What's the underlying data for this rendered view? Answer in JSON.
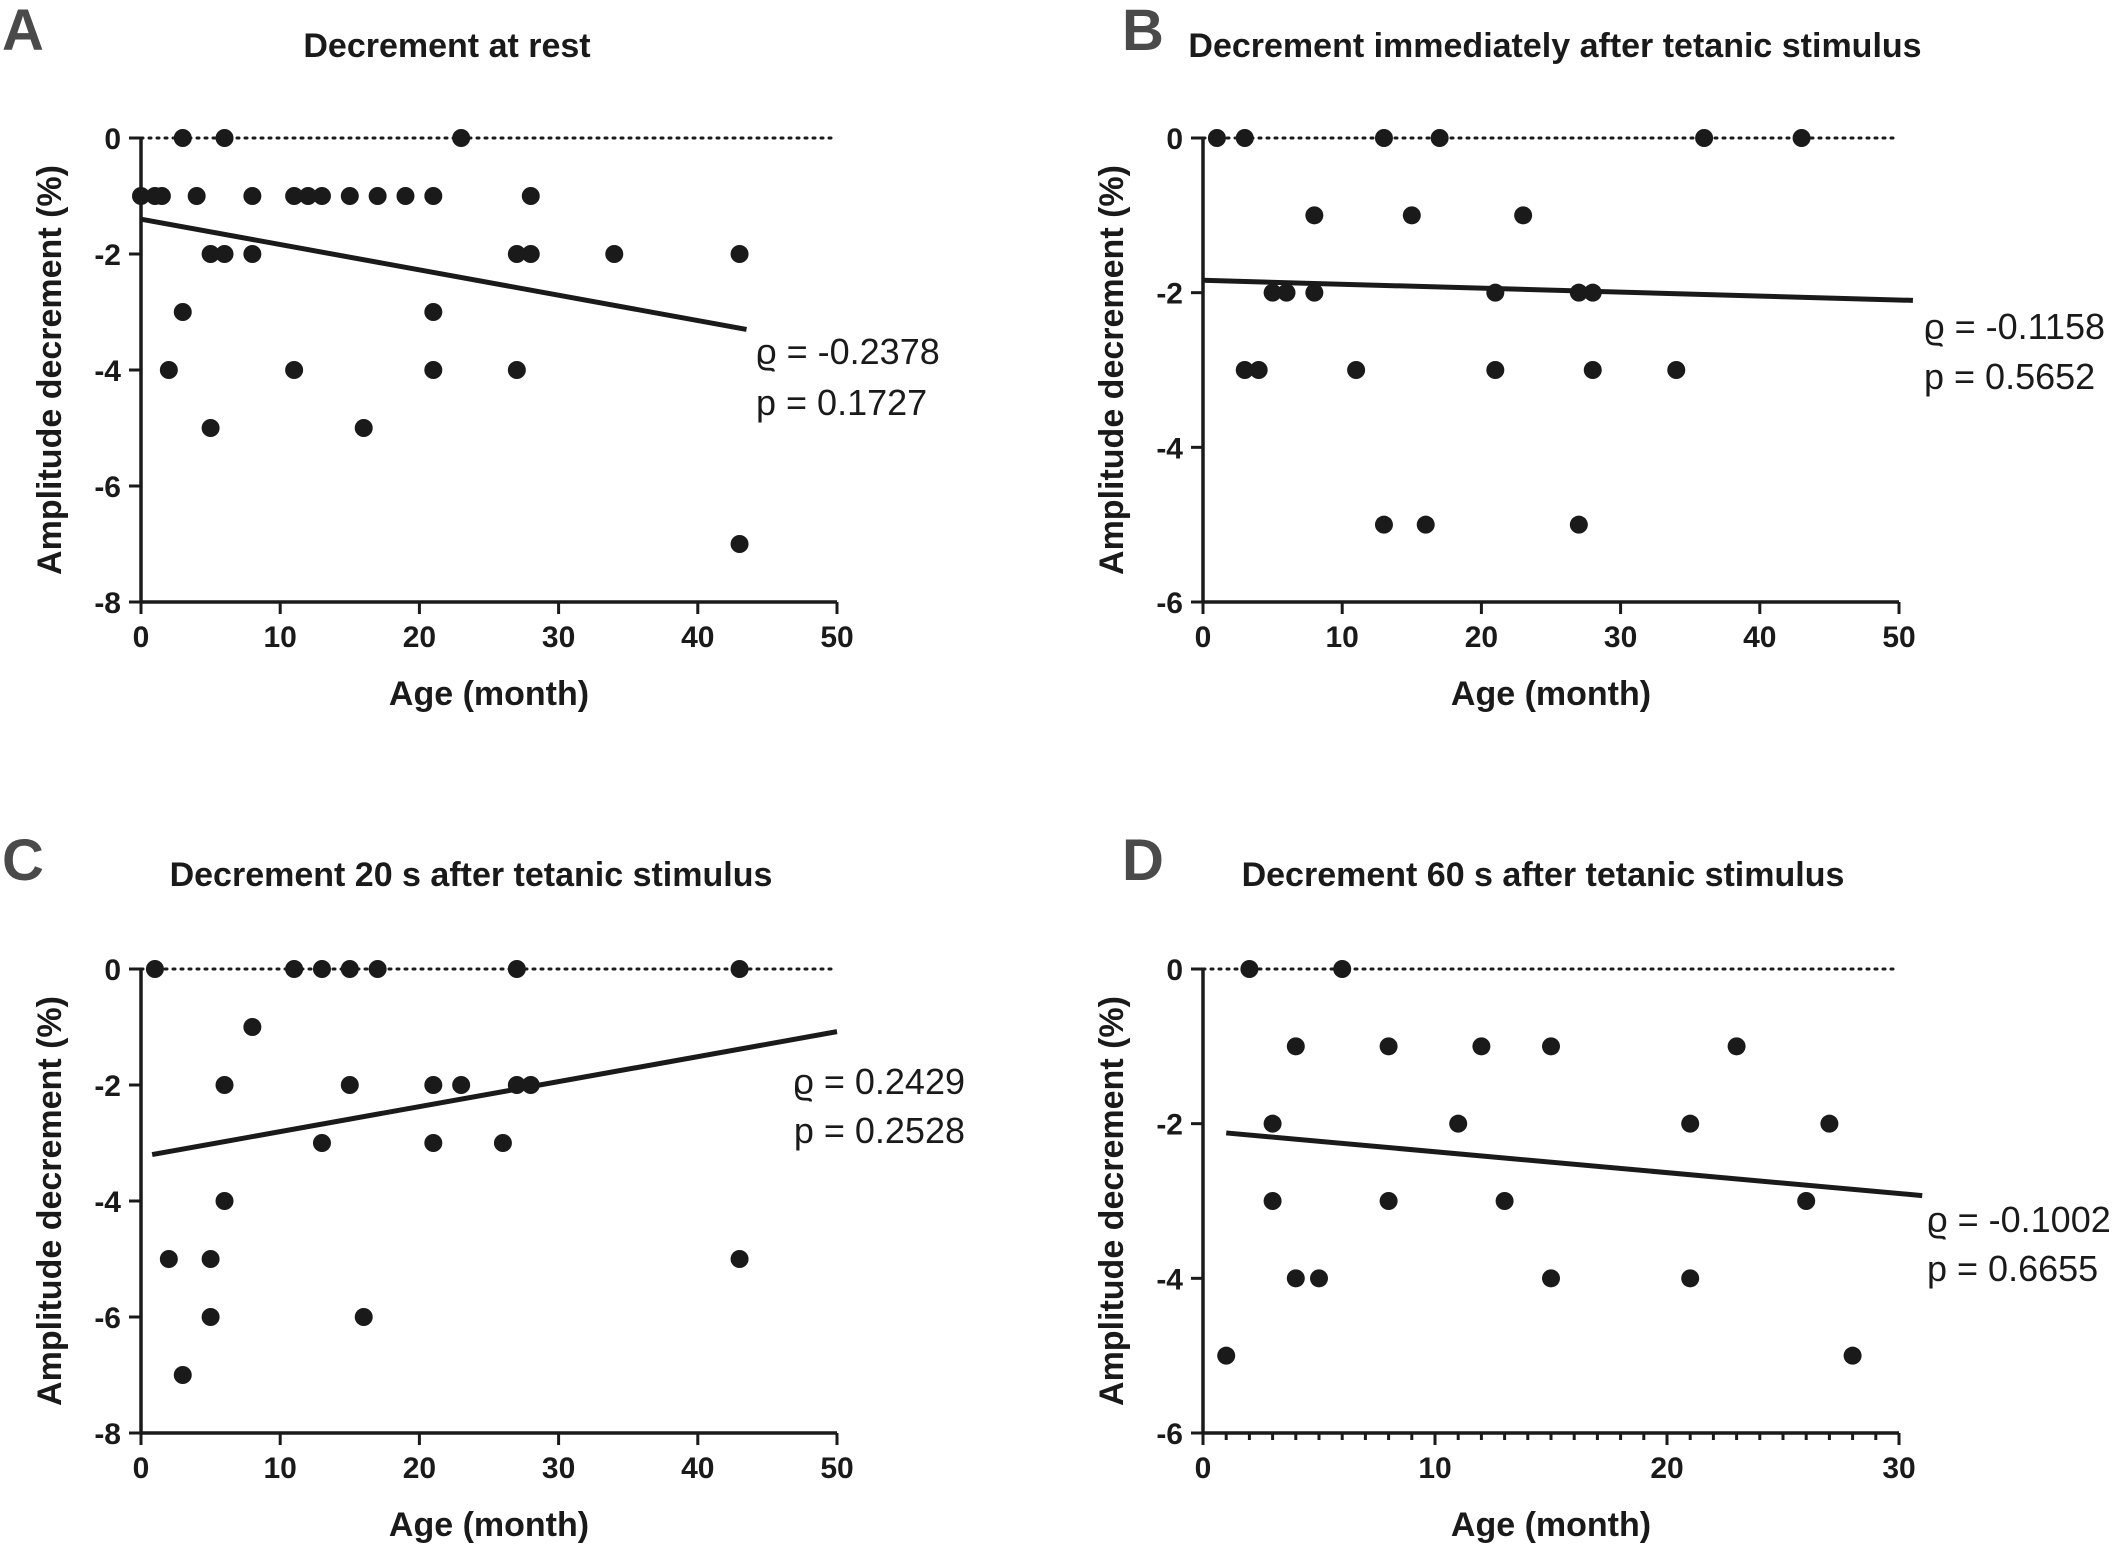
{
  "chart_data": [
    {
      "type": "scatter",
      "panel": "A",
      "title": "Decrement at rest",
      "xlabel": "Age (month)",
      "ylabel": "Amplitude decrement (%)",
      "xlim": [
        0,
        50
      ],
      "ylim": [
        -8,
        0
      ],
      "xticks": [
        0,
        10,
        20,
        30,
        40,
        50
      ],
      "yticks": [
        0,
        -2,
        -4,
        -6,
        -8
      ],
      "minor_xticks": false,
      "reference_line_y": 0,
      "points": [
        {
          "x": 0,
          "y": -1
        },
        {
          "x": 1,
          "y": -1
        },
        {
          "x": 1.5,
          "y": -1
        },
        {
          "x": 2,
          "y": -4
        },
        {
          "x": 3,
          "y": 0
        },
        {
          "x": 3,
          "y": -3
        },
        {
          "x": 4,
          "y": -1
        },
        {
          "x": 5,
          "y": -2
        },
        {
          "x": 5,
          "y": -5
        },
        {
          "x": 6,
          "y": 0
        },
        {
          "x": 6,
          "y": -2
        },
        {
          "x": 8,
          "y": -1
        },
        {
          "x": 8,
          "y": -2
        },
        {
          "x": 11,
          "y": -1
        },
        {
          "x": 11,
          "y": -4
        },
        {
          "x": 12,
          "y": -1
        },
        {
          "x": 13,
          "y": -1
        },
        {
          "x": 15,
          "y": -1
        },
        {
          "x": 16,
          "y": -5
        },
        {
          "x": 17,
          "y": -1
        },
        {
          "x": 19,
          "y": -1
        },
        {
          "x": 21,
          "y": -1
        },
        {
          "x": 21,
          "y": -3
        },
        {
          "x": 21,
          "y": -4
        },
        {
          "x": 23,
          "y": 0
        },
        {
          "x": 27,
          "y": -2
        },
        {
          "x": 27,
          "y": -4
        },
        {
          "x": 28,
          "y": -1
        },
        {
          "x": 28,
          "y": -2
        },
        {
          "x": 34,
          "y": -2
        },
        {
          "x": 43,
          "y": -2
        },
        {
          "x": 43,
          "y": -7
        }
      ],
      "fit_line": {
        "x": [
          0,
          43.5
        ],
        "y": [
          -1.4,
          -3.3
        ]
      },
      "stats": {
        "rho": "ϱ = -0.2378",
        "p": "p = 0.1727"
      }
    },
    {
      "type": "scatter",
      "panel": "B",
      "title": "Decrement immediately after tetanic stimulus",
      "xlabel": "Age (month)",
      "ylabel": "Amplitude decrement (%)",
      "xlim": [
        0,
        50
      ],
      "ylim": [
        -6,
        0
      ],
      "xticks": [
        0,
        10,
        20,
        30,
        40,
        50
      ],
      "yticks": [
        0,
        -2,
        -4,
        -6
      ],
      "minor_xticks": false,
      "reference_line_y": 0,
      "points": [
        {
          "x": 1,
          "y": 0
        },
        {
          "x": 3,
          "y": 0
        },
        {
          "x": 3,
          "y": -3
        },
        {
          "x": 4,
          "y": -3
        },
        {
          "x": 5,
          "y": -2
        },
        {
          "x": 6,
          "y": -2
        },
        {
          "x": 8,
          "y": -1
        },
        {
          "x": 8,
          "y": -2
        },
        {
          "x": 11,
          "y": -3
        },
        {
          "x": 13,
          "y": 0
        },
        {
          "x": 13,
          "y": -5
        },
        {
          "x": 15,
          "y": -1
        },
        {
          "x": 16,
          "y": -5
        },
        {
          "x": 17,
          "y": 0
        },
        {
          "x": 21,
          "y": -2
        },
        {
          "x": 21,
          "y": -3
        },
        {
          "x": 23,
          "y": -1
        },
        {
          "x": 27,
          "y": -2
        },
        {
          "x": 27,
          "y": -5
        },
        {
          "x": 28,
          "y": -2
        },
        {
          "x": 28,
          "y": -3
        },
        {
          "x": 34,
          "y": -3
        },
        {
          "x": 36,
          "y": 0
        },
        {
          "x": 43,
          "y": 0
        }
      ],
      "fit_line": {
        "x": [
          0,
          51
        ],
        "y": [
          -1.84,
          -2.1
        ]
      },
      "stats": {
        "rho": "ϱ = -0.1158",
        "p": "p = 0.5652"
      }
    },
    {
      "type": "scatter",
      "panel": "C",
      "title": "Decrement 20 s after tetanic stimulus",
      "xlabel": "Age (month)",
      "ylabel": "Amplitude decrement (%)",
      "xlim": [
        0,
        50
      ],
      "ylim": [
        -8,
        0
      ],
      "xticks": [
        0,
        10,
        20,
        30,
        40,
        50
      ],
      "yticks": [
        0,
        -2,
        -4,
        -6,
        -8
      ],
      "minor_xticks": false,
      "reference_line_y": 0,
      "points": [
        {
          "x": 1,
          "y": 0
        },
        {
          "x": 2,
          "y": -5
        },
        {
          "x": 3,
          "y": -7
        },
        {
          "x": 5,
          "y": -5
        },
        {
          "x": 5,
          "y": -6
        },
        {
          "x": 6,
          "y": -2
        },
        {
          "x": 6,
          "y": -4
        },
        {
          "x": 8,
          "y": -1
        },
        {
          "x": 11,
          "y": 0
        },
        {
          "x": 13,
          "y": 0
        },
        {
          "x": 13,
          "y": -3
        },
        {
          "x": 15,
          "y": 0
        },
        {
          "x": 15,
          "y": -2
        },
        {
          "x": 16,
          "y": -6
        },
        {
          "x": 17,
          "y": 0
        },
        {
          "x": 21,
          "y": -2
        },
        {
          "x": 21,
          "y": -3
        },
        {
          "x": 23,
          "y": -2
        },
        {
          "x": 26,
          "y": -3
        },
        {
          "x": 27,
          "y": 0
        },
        {
          "x": 27,
          "y": -2
        },
        {
          "x": 28,
          "y": -2
        },
        {
          "x": 43,
          "y": 0
        },
        {
          "x": 43,
          "y": -5
        }
      ],
      "fit_line": {
        "x": [
          0.8,
          50
        ],
        "y": [
          -3.2,
          -1.08
        ]
      },
      "stats": {
        "rho": "ϱ = 0.2429",
        "p": "p = 0.2528"
      }
    },
    {
      "type": "scatter",
      "panel": "D",
      "title": "Decrement 60 s after tetanic stimulus",
      "xlabel": "Age (month)",
      "ylabel": "Amplitude decrement (%)",
      "xlim": [
        0,
        30
      ],
      "ylim": [
        -6,
        0
      ],
      "xticks": [
        0,
        10,
        20,
        30
      ],
      "yticks": [
        0,
        -2,
        -4,
        -6
      ],
      "minor_xticks": true,
      "reference_line_y": 0,
      "points": [
        {
          "x": 1,
          "y": -5
        },
        {
          "x": 2,
          "y": 0
        },
        {
          "x": 3,
          "y": -2
        },
        {
          "x": 3,
          "y": -3
        },
        {
          "x": 4,
          "y": -1
        },
        {
          "x": 4,
          "y": -4
        },
        {
          "x": 5,
          "y": -4
        },
        {
          "x": 6,
          "y": 0
        },
        {
          "x": 8,
          "y": -1
        },
        {
          "x": 8,
          "y": -3
        },
        {
          "x": 11,
          "y": -2
        },
        {
          "x": 12,
          "y": -1
        },
        {
          "x": 13,
          "y": -3
        },
        {
          "x": 15,
          "y": -1
        },
        {
          "x": 15,
          "y": -4
        },
        {
          "x": 21,
          "y": -2
        },
        {
          "x": 21,
          "y": -4
        },
        {
          "x": 23,
          "y": -1
        },
        {
          "x": 26,
          "y": -3
        },
        {
          "x": 27,
          "y": -2
        },
        {
          "x": 28,
          "y": -5
        }
      ],
      "fit_line": {
        "x": [
          1,
          31
        ],
        "y": [
          -2.12,
          -2.93
        ]
      },
      "stats": {
        "rho": "ϱ = -0.1002",
        "p": "p = 0.6655"
      }
    }
  ]
}
